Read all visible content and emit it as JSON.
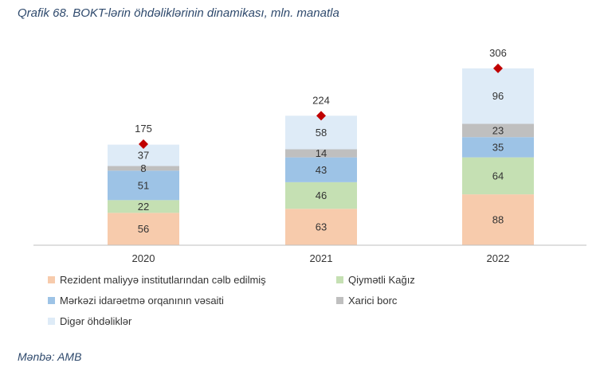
{
  "title": "Qrafik 68. BOKT-lərin öhdəliklərinin dinamikası, mln. manatla",
  "source": "Mənbə: AMB",
  "chart_data": {
    "type": "bar",
    "stacked": true,
    "categories": [
      "2020",
      "2021",
      "2022"
    ],
    "series": [
      {
        "name": "Rezident maliyyə institutlarından cəlb edilmiş",
        "color": "#f7cbac",
        "values": [
          56,
          63,
          88
        ]
      },
      {
        "name": "Qiymətli Kağız",
        "color": "#c5e0b3",
        "values": [
          22,
          46,
          64
        ]
      },
      {
        "name": "Mərkəzi idarəetmə orqanının vəsaiti",
        "color": "#9dc3e6",
        "values": [
          51,
          43,
          35
        ]
      },
      {
        "name": "Xarici borc",
        "color": "#bfbfbf",
        "values": [
          8,
          14,
          23
        ]
      },
      {
        "name": "Digər öhdəliklər",
        "color": "#deebf7",
        "values": [
          37,
          58,
          96
        ]
      }
    ],
    "totals": {
      "values": [
        175,
        224,
        306
      ],
      "marker": "diamond",
      "color": "#c00000"
    },
    "ylim": [
      0,
      340
    ],
    "xlabel": "",
    "ylabel": "",
    "grid": false,
    "legend": "bottom"
  }
}
